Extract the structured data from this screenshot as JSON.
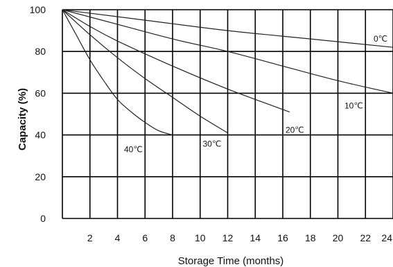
{
  "chart_data": {
    "type": "line",
    "xlabel": "Storage Time (months)",
    "ylabel": "Capacity (%)",
    "xlim": [
      0,
      24
    ],
    "ylim": [
      0,
      100
    ],
    "x_ticks": [
      "2",
      "4",
      "6",
      "8",
      "10",
      "12",
      "14",
      "16",
      "18",
      "20",
      "22",
      "24"
    ],
    "y_ticks": [
      "0",
      "20",
      "40",
      "60",
      "80",
      "100"
    ],
    "grid": true,
    "series": [
      {
        "name": "0℃",
        "x": [
          0,
          6,
          12,
          18,
          24
        ],
        "y": [
          100,
          95,
          90,
          86,
          82
        ]
      },
      {
        "name": "10℃",
        "x": [
          0,
          4,
          8,
          12,
          16,
          20,
          24
        ],
        "y": [
          100,
          93,
          86,
          80,
          73,
          66,
          60
        ]
      },
      {
        "name": "20℃",
        "x": [
          0,
          2,
          4,
          8,
          12,
          16.5
        ],
        "y": [
          100,
          92,
          85,
          73,
          62,
          51
        ]
      },
      {
        "name": "30℃",
        "x": [
          0,
          2,
          4,
          6,
          8,
          10,
          12
        ],
        "y": [
          100,
          88,
          77,
          67,
          58,
          49,
          41
        ]
      },
      {
        "name": "40℃",
        "x": [
          0,
          1,
          2,
          3,
          4,
          5,
          6,
          7,
          8
        ],
        "y": [
          100,
          88,
          76,
          66,
          57,
          51,
          46,
          42,
          40
        ]
      }
    ]
  }
}
